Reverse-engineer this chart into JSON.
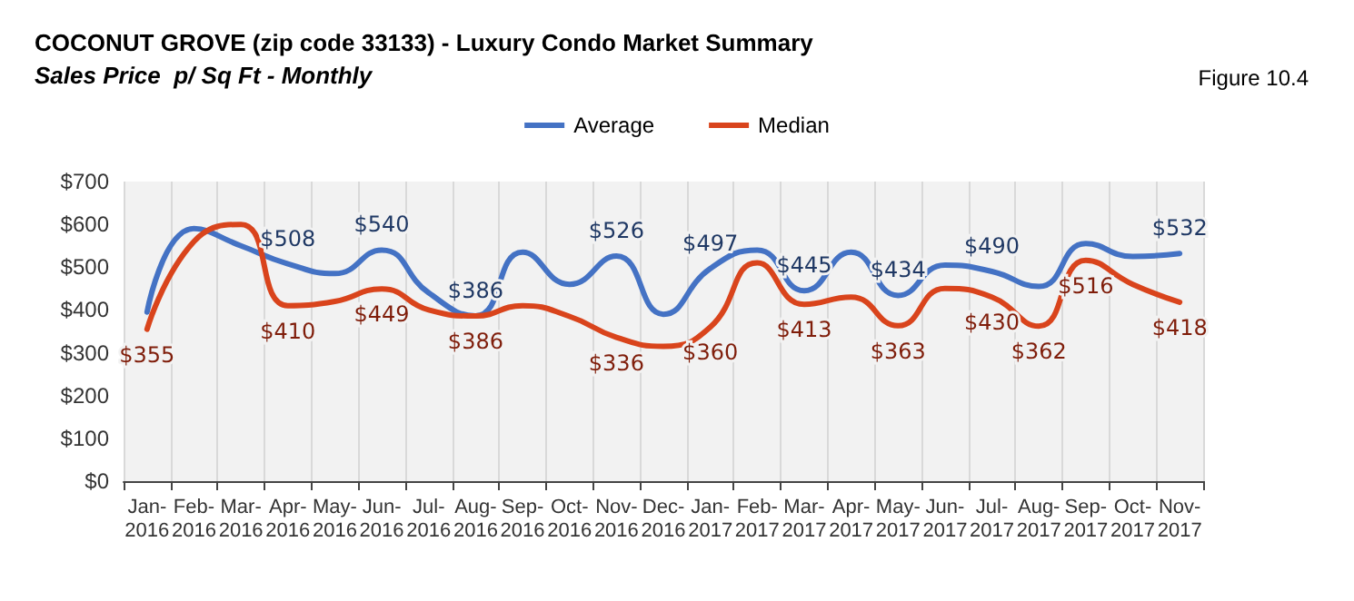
{
  "chart_data": {
    "type": "line",
    "title": "COCONUT GROVE (zip code 33133) - Luxury Condo Market Summary",
    "subtitle": "Sales Price  p/ Sq Ft - Monthly",
    "annotations": [
      "Figure 10.4"
    ],
    "categories": [
      "Jan-\n2016",
      "Feb-\n2016",
      "Mar-\n2016",
      "Apr-\n2016",
      "May-\n2016",
      "Jun-\n2016",
      "Jul-\n2016",
      "Aug-\n2016",
      "Sep-\n2016",
      "Oct-\n2016",
      "Nov-\n2016",
      "Dec-\n2016",
      "Jan-\n2017",
      "Feb-\n2017",
      "Mar-\n2017",
      "Apr-\n2017",
      "May-\n2017",
      "Jun-\n2017",
      "Jul-\n2017",
      "Aug-\n2017",
      "Sep-\n2017",
      "Oct-\n2017",
      "Nov-\n2017"
    ],
    "series": [
      {
        "name": "Average",
        "color": "#4472c4",
        "values": [
          395,
          590,
          550,
          508,
          485,
          540,
          440,
          386,
          535,
          460,
          526,
          390,
          497,
          540,
          445,
          535,
          434,
          505,
          490,
          455,
          555,
          525,
          532
        ],
        "value_labels": [
          null,
          null,
          null,
          "$508",
          null,
          "$540",
          null,
          "$386",
          null,
          null,
          "$526",
          null,
          "$497",
          null,
          "$445",
          null,
          "$434",
          null,
          "$490",
          null,
          null,
          null,
          "$532"
        ]
      },
      {
        "name": "Median",
        "color": "#d9441c",
        "values": [
          355,
          560,
          600,
          410,
          420,
          449,
          400,
          386,
          410,
          385,
          336,
          315,
          360,
          510,
          413,
          430,
          363,
          450,
          430,
          362,
          516,
          460,
          418
        ],
        "value_labels": [
          "$355",
          null,
          null,
          "$410",
          null,
          "$449",
          null,
          "$386",
          null,
          null,
          "$336",
          null,
          "$360",
          null,
          "$413",
          null,
          "$363",
          null,
          "$430",
          "$362",
          "$516",
          null,
          "$418"
        ]
      }
    ],
    "ylim": [
      0,
      700
    ],
    "yticks": [
      {
        "value": 0,
        "label": "$0"
      },
      {
        "value": 100,
        "label": "$100"
      },
      {
        "value": 200,
        "label": "$200"
      },
      {
        "value": 300,
        "label": "$300"
      },
      {
        "value": 400,
        "label": "$400"
      },
      {
        "value": 500,
        "label": "$500"
      },
      {
        "value": 600,
        "label": "$600"
      },
      {
        "value": 700,
        "label": "$700"
      }
    ],
    "grid": "x",
    "legend": "top",
    "marker": "none",
    "line_style": "solid"
  }
}
